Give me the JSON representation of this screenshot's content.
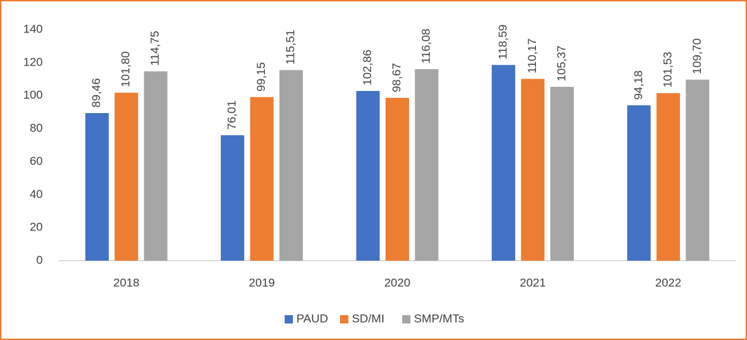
{
  "chart_data": {
    "type": "bar",
    "categories": [
      "2018",
      "2019",
      "2020",
      "2021",
      "2022"
    ],
    "series": [
      {
        "name": "PAUD",
        "color": "#4472c4",
        "values": [
          89.46,
          76.01,
          102.86,
          118.59,
          94.18
        ],
        "value_labels": [
          "89,46",
          "76,01",
          "102,86",
          "118,59",
          "94,18"
        ]
      },
      {
        "name": "SD/MI",
        "color": "#ed7d31",
        "values": [
          101.8,
          99.15,
          98.67,
          110.17,
          101.53
        ],
        "value_labels": [
          "101,80",
          "99,15",
          "98,67",
          "110,17",
          "101,53"
        ]
      },
      {
        "name": "SMP/MTs",
        "color": "#a5a5a5",
        "values": [
          114.75,
          115.51,
          116.08,
          105.37,
          109.7
        ],
        "value_labels": [
          "114,75",
          "115,51",
          "116,08",
          "105,37",
          "109,70"
        ]
      }
    ],
    "ylim": [
      0,
      140
    ],
    "yticks": [
      0,
      20,
      40,
      60,
      80,
      100,
      120,
      140
    ],
    "grid": false,
    "legend": "bottom"
  }
}
